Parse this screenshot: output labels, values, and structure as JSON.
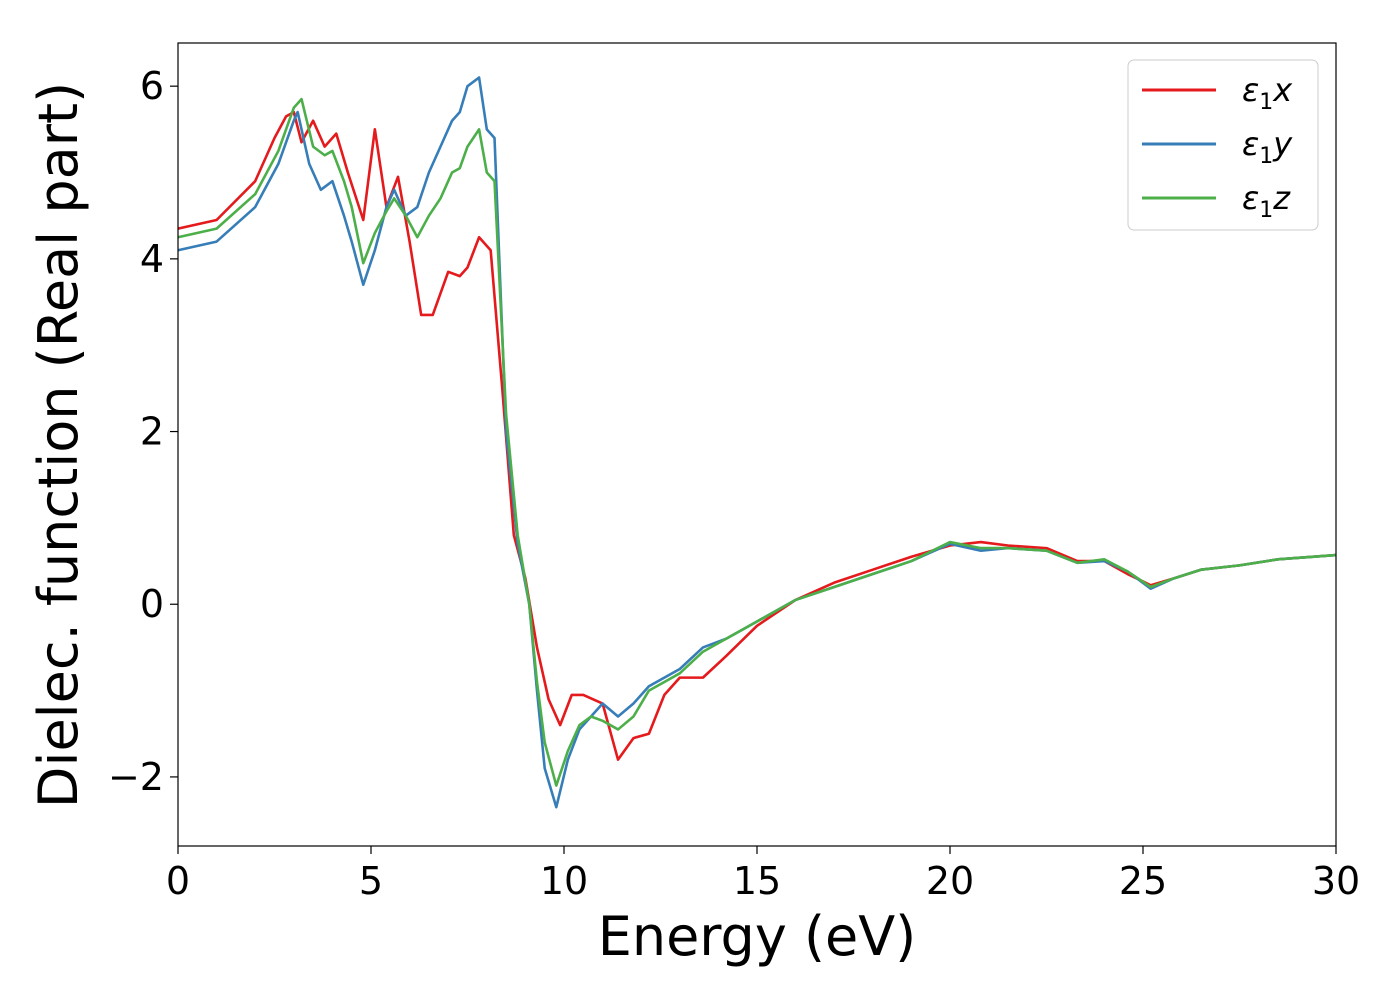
{
  "chart_data": {
    "type": "line",
    "xlabel": "Energy (eV)",
    "ylabel": "Dielec. function (Real part)",
    "xlim": [
      0,
      30
    ],
    "ylim": [
      -2.8,
      6.5
    ],
    "xticks": [
      0,
      5,
      10,
      15,
      20,
      25,
      30
    ],
    "xtick_labels": [
      "0",
      "5",
      "10",
      "15",
      "20",
      "25",
      "30"
    ],
    "yticks": [
      -2,
      0,
      2,
      4,
      6
    ],
    "ytick_labels": [
      "−2",
      "0",
      "2",
      "4",
      "6"
    ],
    "grid": false,
    "legend_position": "top-right",
    "series": [
      {
        "name": "ε1x",
        "legend_main": "ε",
        "legend_sub": "1",
        "legend_suffix": "x",
        "color": "#e41a1c",
        "x": [
          0,
          1,
          2,
          2.5,
          2.8,
          3.0,
          3.2,
          3.5,
          3.8,
          4.1,
          4.4,
          4.8,
          5.1,
          5.4,
          5.7,
          6.0,
          6.3,
          6.6,
          7.0,
          7.3,
          7.5,
          7.8,
          8.1,
          8.4,
          8.7,
          9.0,
          9.3,
          9.6,
          9.9,
          10.2,
          10.5,
          11.0,
          11.4,
          11.8,
          12.2,
          12.6,
          13.0,
          13.6,
          14.2,
          15.0,
          16.0,
          17.0,
          18.0,
          19.0,
          20.0,
          20.8,
          21.5,
          22.5,
          23.3,
          24.0,
          24.6,
          25.2,
          25.8,
          26.5,
          27.5,
          28.5,
          30.0
        ],
        "y": [
          4.35,
          4.45,
          4.9,
          5.4,
          5.65,
          5.7,
          5.35,
          5.6,
          5.3,
          5.45,
          5.0,
          4.45,
          5.5,
          4.6,
          4.95,
          4.2,
          3.35,
          3.35,
          3.85,
          3.8,
          3.9,
          4.25,
          4.1,
          2.5,
          0.8,
          0.3,
          -0.5,
          -1.1,
          -1.4,
          -1.05,
          -1.05,
          -1.15,
          -1.8,
          -1.55,
          -1.5,
          -1.05,
          -0.85,
          -0.85,
          -0.6,
          -0.25,
          0.05,
          0.25,
          0.4,
          0.55,
          0.68,
          0.72,
          0.68,
          0.65,
          0.5,
          0.5,
          0.35,
          0.22,
          0.3,
          0.4,
          0.45,
          0.52,
          0.57
        ]
      },
      {
        "name": "ε1y",
        "legend_main": "ε",
        "legend_sub": "1",
        "legend_suffix": "y",
        "color": "#377eb8",
        "x": [
          0,
          1,
          2,
          2.6,
          3.0,
          3.1,
          3.4,
          3.7,
          4.0,
          4.3,
          4.5,
          4.8,
          5.1,
          5.4,
          5.6,
          5.9,
          6.2,
          6.5,
          6.8,
          7.1,
          7.3,
          7.5,
          7.8,
          8.0,
          8.2,
          8.5,
          8.8,
          9.1,
          9.3,
          9.5,
          9.8,
          10.1,
          10.4,
          10.7,
          11.0,
          11.4,
          11.8,
          12.2,
          12.6,
          13.0,
          13.6,
          14.2,
          15.0,
          16.0,
          17.0,
          18.0,
          19.0,
          20.0,
          20.8,
          21.5,
          22.5,
          23.3,
          24.0,
          24.6,
          25.2,
          25.8,
          26.5,
          27.5,
          28.5,
          30.0
        ],
        "y": [
          4.1,
          4.2,
          4.6,
          5.1,
          5.6,
          5.7,
          5.1,
          4.8,
          4.9,
          4.5,
          4.2,
          3.7,
          4.1,
          4.6,
          4.8,
          4.5,
          4.6,
          5.0,
          5.3,
          5.6,
          5.7,
          6.0,
          6.1,
          5.5,
          5.4,
          2.0,
          0.7,
          0.0,
          -1.0,
          -1.9,
          -2.35,
          -1.8,
          -1.45,
          -1.3,
          -1.15,
          -1.3,
          -1.15,
          -0.95,
          -0.85,
          -0.75,
          -0.5,
          -0.4,
          -0.2,
          0.05,
          0.2,
          0.35,
          0.5,
          0.7,
          0.62,
          0.65,
          0.62,
          0.48,
          0.5,
          0.38,
          0.18,
          0.3,
          0.4,
          0.45,
          0.52,
          0.57
        ]
      },
      {
        "name": "ε1z",
        "legend_main": "ε",
        "legend_sub": "1",
        "legend_suffix": "z",
        "color": "#4daf4a",
        "x": [
          0,
          1,
          2,
          2.6,
          3.0,
          3.2,
          3.5,
          3.8,
          4.0,
          4.3,
          4.5,
          4.8,
          5.1,
          5.4,
          5.6,
          5.9,
          6.2,
          6.5,
          6.8,
          7.1,
          7.3,
          7.5,
          7.8,
          8.0,
          8.2,
          8.5,
          8.8,
          9.1,
          9.3,
          9.5,
          9.8,
          10.1,
          10.4,
          10.7,
          11.0,
          11.4,
          11.8,
          12.2,
          12.6,
          13.0,
          13.6,
          14.2,
          15.0,
          16.0,
          17.0,
          18.0,
          19.0,
          20.0,
          20.8,
          21.5,
          22.5,
          23.3,
          24.0,
          24.6,
          25.2,
          25.8,
          26.5,
          27.5,
          28.5,
          30.0
        ],
        "y": [
          4.25,
          4.35,
          4.75,
          5.25,
          5.75,
          5.85,
          5.3,
          5.2,
          5.25,
          4.9,
          4.6,
          3.95,
          4.3,
          4.55,
          4.7,
          4.5,
          4.25,
          4.5,
          4.7,
          5.0,
          5.05,
          5.3,
          5.5,
          5.0,
          4.9,
          2.2,
          0.8,
          0.0,
          -0.9,
          -1.6,
          -2.1,
          -1.7,
          -1.4,
          -1.3,
          -1.35,
          -1.45,
          -1.3,
          -1.0,
          -0.9,
          -0.8,
          -0.55,
          -0.4,
          -0.2,
          0.05,
          0.2,
          0.35,
          0.5,
          0.72,
          0.65,
          0.65,
          0.62,
          0.48,
          0.52,
          0.38,
          0.2,
          0.3,
          0.4,
          0.45,
          0.52,
          0.57
        ]
      }
    ]
  }
}
